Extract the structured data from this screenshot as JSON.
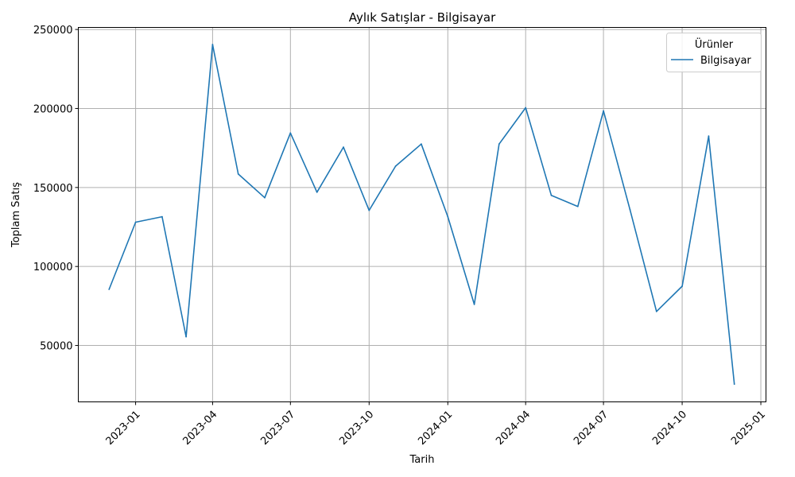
{
  "chart_data": {
    "type": "line",
    "title": "Aylık Satışlar - Bilgisayar",
    "xlabel": "Tarih",
    "ylabel": "Toplam Satış",
    "legend": {
      "title": "Ürünler",
      "placement": "top-right",
      "entries": [
        "Bilgisayar"
      ]
    },
    "grid": true,
    "x_ticks": [
      "2023-01",
      "2023-04",
      "2023-07",
      "2023-10",
      "2024-01",
      "2024-04",
      "2024-07",
      "2024-10",
      "2025-01"
    ],
    "y_ticks": [
      "50000",
      "100000",
      "150000",
      "200000",
      "250000"
    ],
    "xlim": [
      "2022-10-26",
      "2025-01-07"
    ],
    "ylim": [
      14300,
      251300
    ],
    "series": [
      {
        "name": "Bilgisayar",
        "color": "#1f77b4",
        "x": [
          "2022-12-01",
          "2023-01-01",
          "2023-02-01",
          "2023-03-01",
          "2023-04-01",
          "2023-05-01",
          "2023-06-01",
          "2023-07-01",
          "2023-08-01",
          "2023-09-01",
          "2023-10-01",
          "2023-11-01",
          "2023-12-01",
          "2024-01-01",
          "2024-02-01",
          "2024-03-01",
          "2024-04-01",
          "2024-05-01",
          "2024-06-01",
          "2024-07-01",
          "2024-08-01",
          "2024-09-01",
          "2024-10-01",
          "2024-11-01",
          "2024-12-01"
        ],
        "values": [
          85500,
          128000,
          131500,
          55500,
          240500,
          158500,
          143500,
          184500,
          147000,
          175500,
          135500,
          163500,
          177500,
          131500,
          76000,
          177500,
          200500,
          145000,
          138000,
          198500,
          136000,
          71500,
          87500,
          182500,
          25500
        ]
      }
    ]
  }
}
